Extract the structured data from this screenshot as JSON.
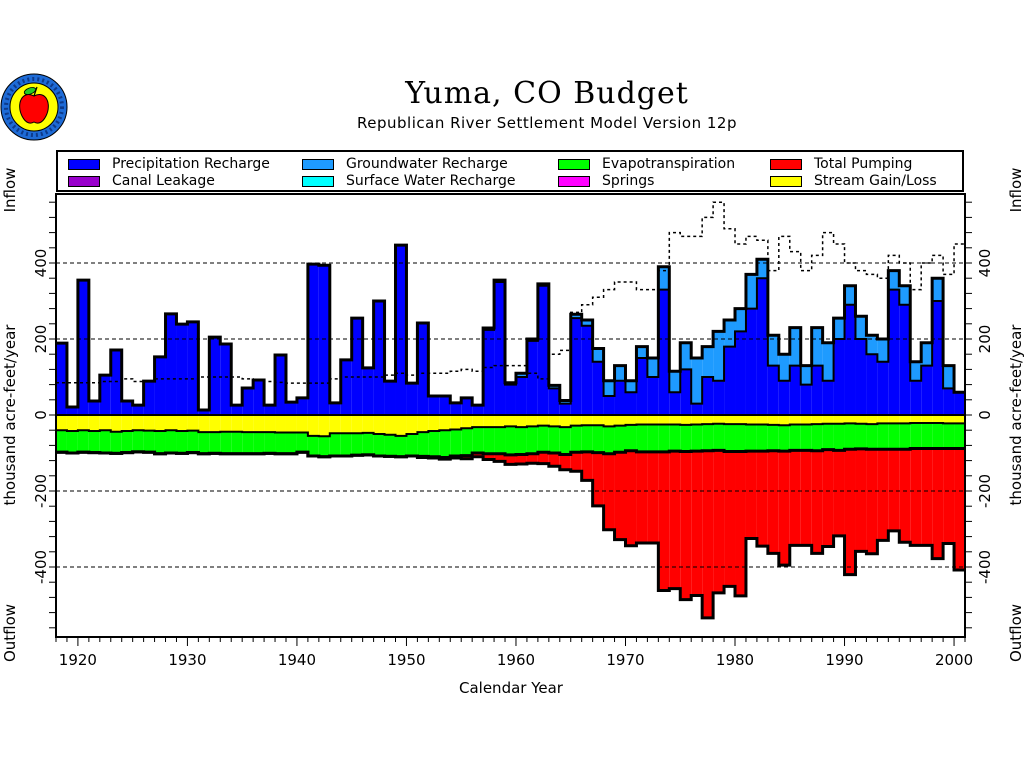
{
  "chart_data": {
    "type": "bar",
    "subtype": "stacked-step-budget",
    "title": "Yuma, CO Budget",
    "subtitle": "Republican River Settlement Model Version 12p",
    "xlabel": "Calendar Year",
    "ylabel": "thousand acre-feet/year",
    "ylabel_top": "Inflow",
    "ylabel_bottom": "Outflow",
    "xlim": [
      1918,
      2001
    ],
    "ylim": [
      -570,
      570
    ],
    "xticks": [
      1920,
      1930,
      1940,
      1950,
      1960,
      1970,
      1980,
      1990,
      2000
    ],
    "yticks": [
      -400,
      -200,
      0,
      200,
      400
    ],
    "grid": "dashed at ±200 and ±400",
    "legend": [
      {
        "name": "Precipitation Recharge",
        "color": "#0000ff"
      },
      {
        "name": "Canal Leakage",
        "color": "#9900cc"
      },
      {
        "name": "Groundwater Recharge",
        "color": "#1e9bff"
      },
      {
        "name": "Surface Water Recharge",
        "color": "#00ffff"
      },
      {
        "name": "Evapotranspiration",
        "color": "#00ff00"
      },
      {
        "name": "Springs",
        "color": "#ff00ff"
      },
      {
        "name": "Total Pumping",
        "color": "#ff0000"
      },
      {
        "name": "Stream Gain/Loss",
        "color": "#ffff00"
      }
    ],
    "x": [
      1918,
      1919,
      1920,
      1921,
      1922,
      1923,
      1924,
      1925,
      1926,
      1927,
      1928,
      1929,
      1930,
      1931,
      1932,
      1933,
      1934,
      1935,
      1936,
      1937,
      1938,
      1939,
      1940,
      1941,
      1942,
      1943,
      1944,
      1945,
      1946,
      1947,
      1948,
      1949,
      1950,
      1951,
      1952,
      1953,
      1954,
      1955,
      1956,
      1957,
      1958,
      1959,
      1960,
      1961,
      1962,
      1963,
      1964,
      1965,
      1966,
      1967,
      1968,
      1969,
      1970,
      1971,
      1972,
      1973,
      1974,
      1975,
      1976,
      1977,
      1978,
      1979,
      1980,
      1981,
      1982,
      1983,
      1984,
      1985,
      1986,
      1987,
      1988,
      1989,
      1990,
      1991,
      1992,
      1993,
      1994,
      1995,
      1996,
      1997,
      1998,
      1999,
      2000
    ],
    "series": [
      {
        "name": "Precipitation Recharge",
        "values": [
          189,
          21,
          355,
          37,
          105,
          171,
          37,
          26,
          89,
          153,
          266,
          239,
          245,
          13,
          205,
          187,
          26,
          71,
          92,
          26,
          158,
          34,
          45,
          397,
          394,
          32,
          145,
          255,
          124,
          300,
          89,
          447,
          84,
          242,
          50,
          50,
          32,
          45,
          26,
          224,
          350,
          80,
          100,
          195,
          340,
          70,
          30,
          255,
          235,
          140,
          50,
          90,
          60,
          150,
          100,
          330,
          60,
          120,
          30,
          100,
          90,
          180,
          220,
          280,
          360,
          130,
          90,
          130,
          80,
          130,
          90,
          200,
          290,
          200,
          160,
          140,
          330,
          290,
          90,
          130,
          300,
          70,
          60
        ]
      },
      {
        "name": "Groundwater Recharge",
        "values": [
          0,
          0,
          0,
          0,
          0,
          0,
          0,
          0,
          0,
          0,
          0,
          0,
          0,
          0,
          0,
          0,
          0,
          0,
          0,
          0,
          0,
          0,
          0,
          0,
          0,
          0,
          0,
          0,
          0,
          0,
          0,
          0,
          0,
          0,
          0,
          0,
          0,
          0,
          0,
          5,
          5,
          5,
          10,
          5,
          5,
          8,
          8,
          10,
          15,
          35,
          40,
          40,
          30,
          30,
          50,
          60,
          55,
          70,
          120,
          80,
          130,
          70,
          60,
          90,
          50,
          80,
          70,
          100,
          50,
          100,
          100,
          55,
          50,
          60,
          50,
          60,
          50,
          50,
          50,
          60,
          60,
          60,
          0
        ]
      },
      {
        "name": "Canal Leakage",
        "values": [
          0,
          0,
          0,
          0,
          0,
          0,
          0,
          0,
          0,
          0,
          0,
          0,
          0,
          0,
          0,
          0,
          0,
          0,
          0,
          0,
          0,
          0,
          0,
          0,
          0,
          0,
          0,
          0,
          0,
          0,
          0,
          0,
          0,
          0,
          0,
          0,
          0,
          0,
          0,
          0,
          0,
          0,
          0,
          0,
          0,
          0,
          0,
          0,
          0,
          0,
          0,
          0,
          0,
          0,
          0,
          0,
          0,
          0,
          0,
          0,
          0,
          0,
          0,
          0,
          0,
          0,
          0,
          0,
          0,
          0,
          0,
          0,
          0,
          0,
          0,
          0,
          0,
          0,
          0,
          0,
          0,
          0,
          0
        ]
      },
      {
        "name": "Surface Water Recharge",
        "values": [
          0,
          0,
          0,
          0,
          0,
          0,
          0,
          0,
          0,
          0,
          0,
          0,
          0,
          0,
          0,
          0,
          0,
          0,
          0,
          0,
          0,
          0,
          0,
          0,
          0,
          0,
          0,
          0,
          0,
          0,
          0,
          0,
          0,
          0,
          0,
          0,
          0,
          0,
          0,
          0,
          0,
          0,
          0,
          0,
          0,
          0,
          0,
          0,
          0,
          0,
          0,
          0,
          0,
          0,
          0,
          0,
          0,
          0,
          0,
          0,
          0,
          0,
          0,
          0,
          0,
          0,
          0,
          0,
          0,
          0,
          0,
          0,
          0,
          0,
          0,
          0,
          0,
          0,
          0,
          0,
          0,
          0,
          0
        ]
      },
      {
        "name": "Stream Gain/Loss",
        "values": [
          -40,
          -42,
          -40,
          -42,
          -40,
          -44,
          -42,
          -40,
          -41,
          -42,
          -40,
          -42,
          -41,
          -45,
          -45,
          -44,
          -44,
          -45,
          -45,
          -45,
          -46,
          -46,
          -46,
          -55,
          -56,
          -48,
          -48,
          -48,
          -47,
          -50,
          -52,
          -55,
          -50,
          -45,
          -42,
          -40,
          -38,
          -35,
          -32,
          -32,
          -32,
          -30,
          -32,
          -30,
          -28,
          -30,
          -32,
          -28,
          -27,
          -27,
          -30,
          -28,
          -26,
          -25,
          -25,
          -25,
          -25,
          -26,
          -25,
          -24,
          -23,
          -24,
          -24,
          -25,
          -25,
          -26,
          -27,
          -25,
          -25,
          -24,
          -23,
          -23,
          -22,
          -23,
          -24,
          -22,
          -22,
          -22,
          -21,
          -21,
          -21,
          -22,
          -22
        ]
      },
      {
        "name": "Evapotranspiration",
        "values": [
          -58,
          -58,
          -58,
          -57,
          -60,
          -57,
          -57,
          -57,
          -57,
          -60,
          -60,
          -59,
          -58,
          -57,
          -56,
          -58,
          -58,
          -57,
          -57,
          -56,
          -56,
          -56,
          -52,
          -53,
          -54,
          -60,
          -60,
          -58,
          -58,
          -58,
          -57,
          -55,
          -58,
          -64,
          -68,
          -72,
          -70,
          -72,
          -68,
          -70,
          -70,
          -75,
          -72,
          -72,
          -70,
          -70,
          -72,
          -70,
          -70,
          -72,
          -72,
          -70,
          -68,
          -72,
          -72,
          -72,
          -70,
          -70,
          -70,
          -70,
          -70,
          -72,
          -72,
          -70,
          -70,
          -68,
          -68,
          -68,
          -68,
          -70,
          -68,
          -70,
          -68,
          -66,
          -66,
          -68,
          -68,
          -68,
          -67,
          -67,
          -67,
          -66,
          -66
        ]
      },
      {
        "name": "Total Pumping",
        "values": [
          0,
          0,
          0,
          0,
          0,
          0,
          0,
          0,
          0,
          0,
          0,
          0,
          0,
          0,
          0,
          0,
          0,
          0,
          0,
          0,
          0,
          0,
          0,
          0,
          0,
          0,
          0,
          0,
          0,
          0,
          0,
          0,
          0,
          -3,
          -3,
          -4,
          -5,
          -8,
          -10,
          -15,
          -20,
          -25,
          -25,
          -25,
          -30,
          -35,
          -40,
          -50,
          -75,
          -140,
          -200,
          -230,
          -250,
          -240,
          -240,
          -365,
          -362,
          -390,
          -380,
          -440,
          -375,
          -355,
          -380,
          -230,
          -250,
          -270,
          -300,
          -250,
          -250,
          -270,
          -255,
          -225,
          -330,
          -270,
          -275,
          -240,
          -215,
          -245,
          -255,
          -255,
          -290,
          -250,
          -320
        ]
      },
      {
        "name": "Springs",
        "values": [
          0,
          0,
          0,
          0,
          0,
          0,
          0,
          0,
          0,
          0,
          0,
          0,
          0,
          0,
          0,
          0,
          0,
          0,
          0,
          0,
          0,
          0,
          0,
          0,
          0,
          0,
          0,
          0,
          0,
          0,
          0,
          0,
          0,
          0,
          0,
          0,
          0,
          0,
          0,
          0,
          0,
          0,
          0,
          0,
          0,
          0,
          0,
          0,
          0,
          0,
          0,
          0,
          0,
          0,
          0,
          0,
          0,
          0,
          0,
          0,
          0,
          0,
          0,
          0,
          0,
          0,
          0,
          0,
          0,
          0,
          0,
          0,
          0,
          0,
          0,
          0,
          0,
          0,
          0,
          0,
          0,
          0,
          0
        ]
      }
    ],
    "storage_change_dashed": [
      85,
      85,
      85,
      85,
      88,
      88,
      95,
      88,
      88,
      95,
      95,
      95,
      95,
      100,
      100,
      100,
      100,
      95,
      90,
      88,
      86,
      84,
      84,
      84,
      84,
      95,
      100,
      100,
      100,
      100,
      105,
      110,
      105,
      110,
      110,
      110,
      115,
      120,
      115,
      125,
      130,
      130,
      130,
      110,
      95,
      160,
      170,
      270,
      290,
      310,
      330,
      350,
      350,
      330,
      330,
      380,
      480,
      470,
      470,
      520,
      560,
      490,
      450,
      470,
      460,
      380,
      470,
      430,
      380,
      420,
      480,
      450,
      400,
      380,
      370,
      360,
      420,
      400,
      330,
      400,
      420,
      370,
      450
    ]
  }
}
